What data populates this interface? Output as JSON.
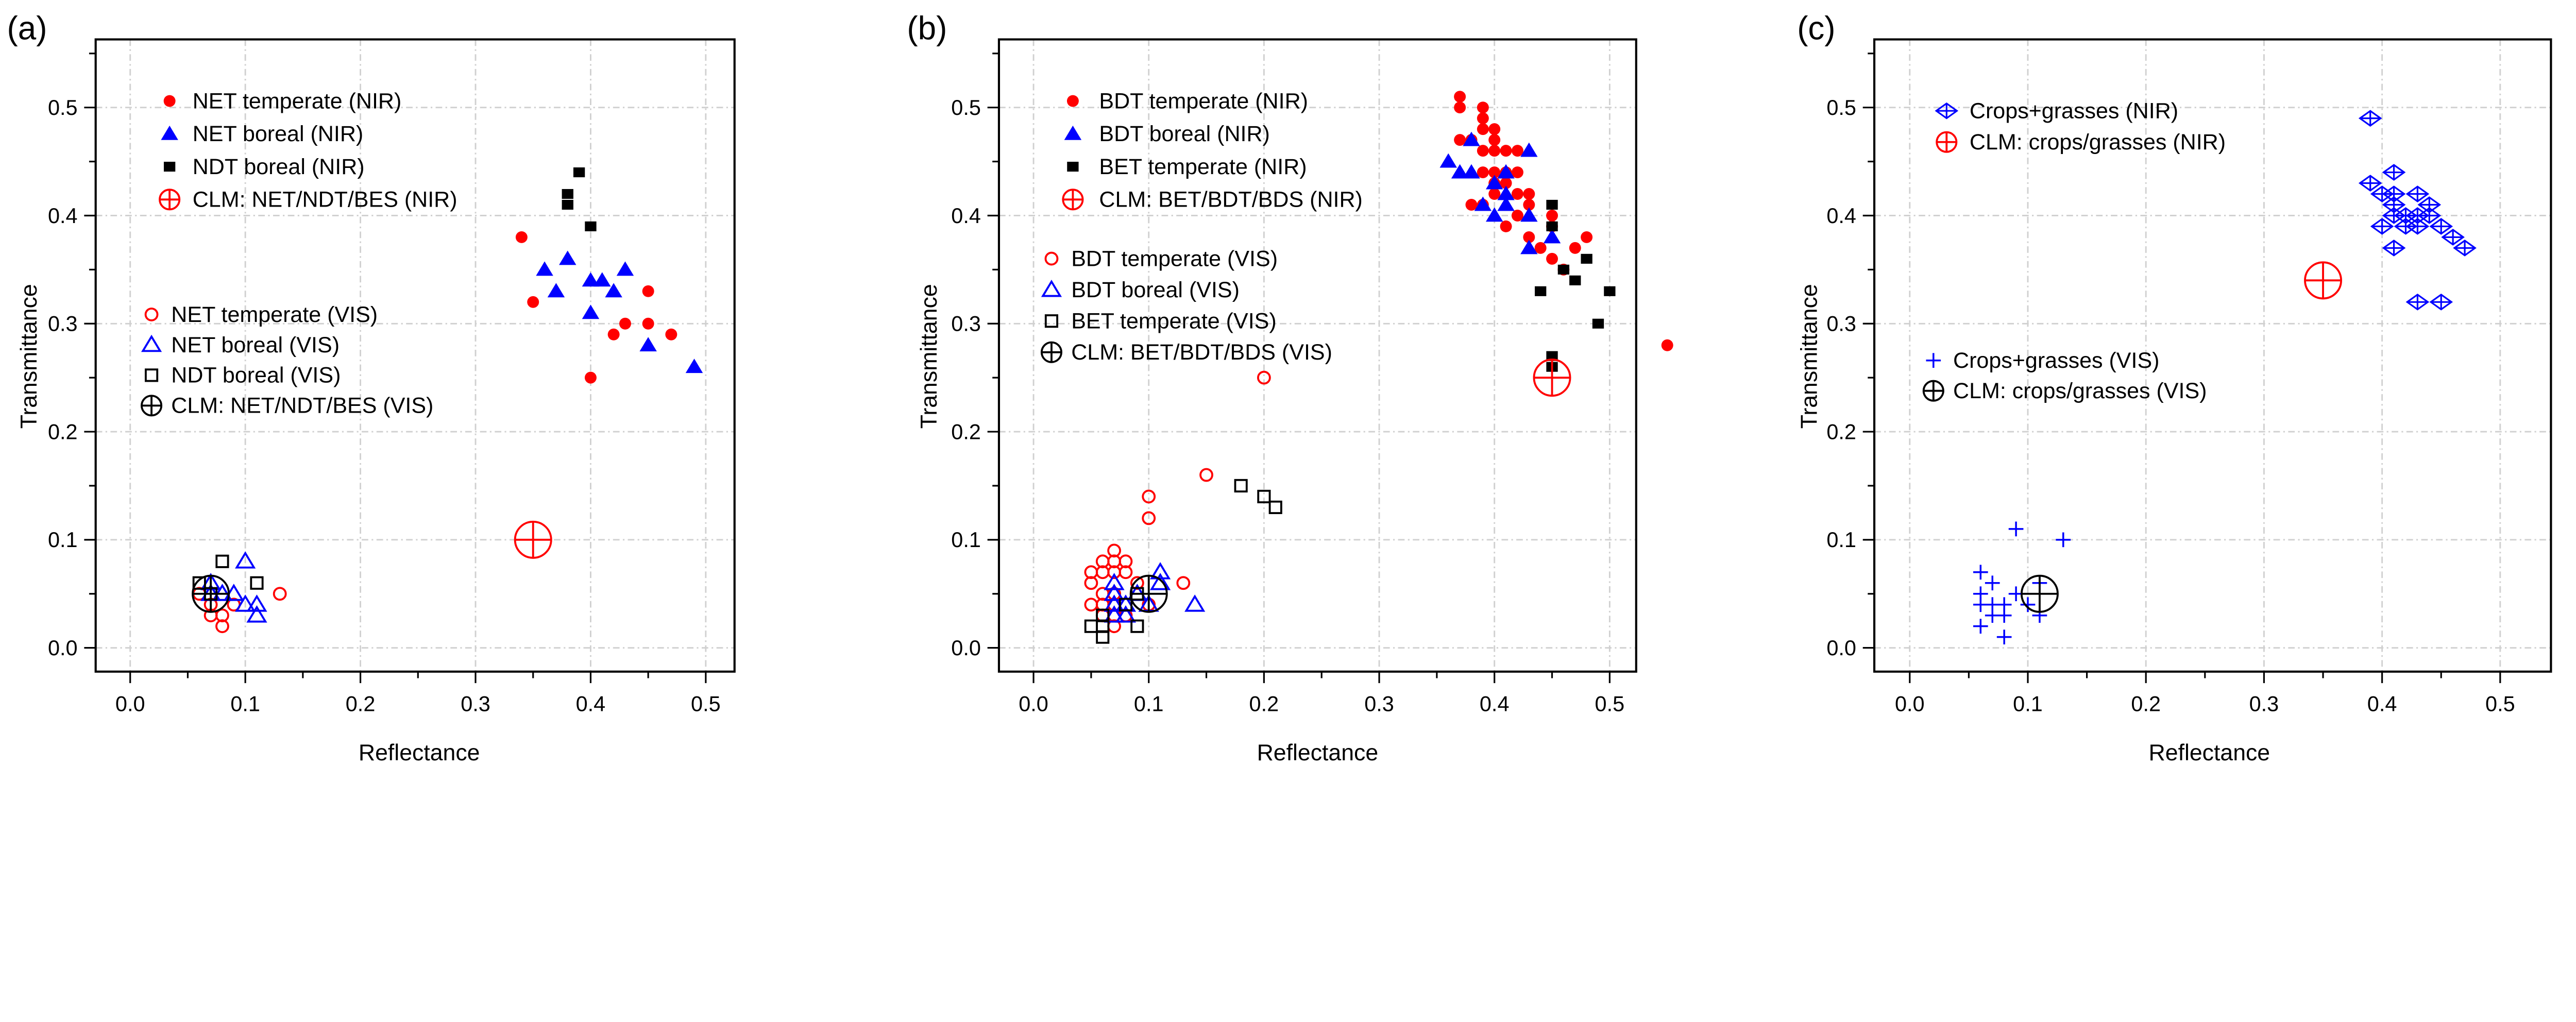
{
  "chart_data": [
    {
      "type": "scatter",
      "panel_label": "(a)",
      "xlabel": "Reflectance",
      "ylabel": "Transmittance",
      "xlim": [
        -0.03,
        0.525
      ],
      "ylim": [
        -0.022,
        0.563
      ],
      "xticks": [
        "0.0",
        "0.1",
        "0.2",
        "0.3",
        "0.4",
        "0.5"
      ],
      "yticks": [
        "0.0",
        "0.1",
        "0.2",
        "0.3",
        "0.4",
        "0.5"
      ],
      "grid": true,
      "series": [
        {
          "name": "NET temperate (NIR)",
          "marker": "filled-circle",
          "color": "#ff0000",
          "legend": "nir",
          "points": [
            [
              0.34,
              0.38
            ],
            [
              0.35,
              0.32
            ],
            [
              0.4,
              0.25
            ],
            [
              0.42,
              0.29
            ],
            [
              0.43,
              0.3
            ],
            [
              0.45,
              0.33
            ],
            [
              0.45,
              0.3
            ],
            [
              0.47,
              0.29
            ]
          ]
        },
        {
          "name": "NET boreal (NIR)",
          "marker": "filled-triangle",
          "color": "#0000ff",
          "legend": "nir",
          "points": [
            [
              0.36,
              0.35
            ],
            [
              0.38,
              0.36
            ],
            [
              0.37,
              0.33
            ],
            [
              0.4,
              0.34
            ],
            [
              0.41,
              0.34
            ],
            [
              0.42,
              0.33
            ],
            [
              0.43,
              0.35
            ],
            [
              0.4,
              0.31
            ],
            [
              0.45,
              0.28
            ],
            [
              0.49,
              0.26
            ]
          ]
        },
        {
          "name": "NDT boreal (NIR)",
          "marker": "filled-square",
          "color": "#000000",
          "legend": "nir",
          "points": [
            [
              0.39,
              0.44
            ],
            [
              0.38,
              0.42
            ],
            [
              0.38,
              0.41
            ],
            [
              0.4,
              0.39
            ]
          ]
        },
        {
          "name": "CLM: NET/NDT/BES (NIR)",
          "marker": "circle-plus",
          "color": "#ff0000",
          "legend": "nir",
          "points": [
            [
              0.35,
              0.1
            ]
          ]
        },
        {
          "name": "NET temperate (VIS)",
          "marker": "open-circle",
          "color": "#ff0000",
          "legend": "vis",
          "points": [
            [
              0.06,
              0.05
            ],
            [
              0.07,
              0.04
            ],
            [
              0.07,
              0.03
            ],
            [
              0.08,
              0.03
            ],
            [
              0.08,
              0.02
            ],
            [
              0.09,
              0.04
            ],
            [
              0.13,
              0.05
            ]
          ]
        },
        {
          "name": "NET boreal (VIS)",
          "marker": "open-triangle",
          "color": "#0000ff",
          "legend": "vis",
          "points": [
            [
              0.1,
              0.08
            ],
            [
              0.07,
              0.06
            ],
            [
              0.08,
              0.05
            ],
            [
              0.09,
              0.05
            ],
            [
              0.07,
              0.05
            ],
            [
              0.1,
              0.04
            ],
            [
              0.11,
              0.04
            ],
            [
              0.11,
              0.03
            ]
          ]
        },
        {
          "name": "NDT boreal (VIS)",
          "marker": "open-square",
          "color": "#000000",
          "legend": "vis",
          "points": [
            [
              0.08,
              0.08
            ],
            [
              0.06,
              0.06
            ],
            [
              0.07,
              0.05
            ],
            [
              0.11,
              0.06
            ]
          ]
        },
        {
          "name": "CLM: NET/NDT/BES (VIS)",
          "marker": "circle-plus",
          "color": "#000000",
          "legend": "vis",
          "points": [
            [
              0.07,
              0.05
            ]
          ]
        }
      ]
    },
    {
      "type": "scatter",
      "panel_label": "(b)",
      "xlabel": "Reflectance",
      "ylabel": "Transmittance",
      "xlim": [
        -0.03,
        0.523
      ],
      "ylim": [
        -0.022,
        0.563
      ],
      "xticks": [
        "0.0",
        "0.1",
        "0.2",
        "0.3",
        "0.4",
        "0.5"
      ],
      "yticks": [
        "0.0",
        "0.1",
        "0.2",
        "0.3",
        "0.4",
        "0.5"
      ],
      "grid": true,
      "series": [
        {
          "name": "BDT temperate (NIR)",
          "marker": "filled-circle",
          "color": "#ff0000",
          "legend": "nir",
          "points": [
            [
              0.37,
              0.51
            ],
            [
              0.37,
              0.5
            ],
            [
              0.39,
              0.5
            ],
            [
              0.39,
              0.49
            ],
            [
              0.39,
              0.48
            ],
            [
              0.4,
              0.48
            ],
            [
              0.37,
              0.47
            ],
            [
              0.38,
              0.47
            ],
            [
              0.4,
              0.47
            ],
            [
              0.39,
              0.46
            ],
            [
              0.4,
              0.46
            ],
            [
              0.41,
              0.46
            ],
            [
              0.42,
              0.46
            ],
            [
              0.39,
              0.44
            ],
            [
              0.4,
              0.44
            ],
            [
              0.41,
              0.44
            ],
            [
              0.42,
              0.44
            ],
            [
              0.4,
              0.43
            ],
            [
              0.41,
              0.43
            ],
            [
              0.4,
              0.42
            ],
            [
              0.42,
              0.42
            ],
            [
              0.43,
              0.42
            ],
            [
              0.38,
              0.41
            ],
            [
              0.39,
              0.41
            ],
            [
              0.43,
              0.41
            ],
            [
              0.42,
              0.4
            ],
            [
              0.45,
              0.4
            ],
            [
              0.41,
              0.39
            ],
            [
              0.45,
              0.39
            ],
            [
              0.43,
              0.38
            ],
            [
              0.48,
              0.38
            ],
            [
              0.44,
              0.37
            ],
            [
              0.47,
              0.37
            ],
            [
              0.45,
              0.36
            ],
            [
              0.46,
              0.35
            ],
            [
              0.55,
              0.28
            ]
          ]
        },
        {
          "name": "BDT boreal (NIR)",
          "marker": "filled-triangle",
          "color": "#0000ff",
          "legend": "nir",
          "points": [
            [
              0.36,
              0.45
            ],
            [
              0.38,
              0.47
            ],
            [
              0.43,
              0.46
            ],
            [
              0.37,
              0.44
            ],
            [
              0.38,
              0.44
            ],
            [
              0.41,
              0.44
            ],
            [
              0.4,
              0.43
            ],
            [
              0.41,
              0.42
            ],
            [
              0.39,
              0.41
            ],
            [
              0.41,
              0.41
            ],
            [
              0.4,
              0.4
            ],
            [
              0.43,
              0.4
            ],
            [
              0.45,
              0.38
            ],
            [
              0.43,
              0.37
            ]
          ]
        },
        {
          "name": "BET temperate (NIR)",
          "marker": "filled-square",
          "color": "#000000",
          "legend": "nir",
          "points": [
            [
              0.45,
              0.41
            ],
            [
              0.45,
              0.39
            ],
            [
              0.48,
              0.36
            ],
            [
              0.46,
              0.35
            ],
            [
              0.47,
              0.34
            ],
            [
              0.44,
              0.33
            ],
            [
              0.5,
              0.33
            ],
            [
              0.49,
              0.3
            ],
            [
              0.45,
              0.27
            ],
            [
              0.45,
              0.26
            ]
          ]
        },
        {
          "name": "CLM: BET/BDT/BDS (NIR)",
          "marker": "circle-plus",
          "color": "#ff0000",
          "legend": "nir",
          "points": [
            [
              0.45,
              0.25
            ]
          ]
        },
        {
          "name": "BDT temperate (VIS)",
          "marker": "open-circle",
          "color": "#ff0000",
          "legend": "vis",
          "points": [
            [
              0.2,
              0.25
            ],
            [
              0.15,
              0.16
            ],
            [
              0.1,
              0.14
            ],
            [
              0.1,
              0.12
            ],
            [
              0.13,
              0.06
            ],
            [
              0.07,
              0.09
            ],
            [
              0.06,
              0.08
            ],
            [
              0.07,
              0.08
            ],
            [
              0.08,
              0.08
            ],
            [
              0.05,
              0.07
            ],
            [
              0.06,
              0.07
            ],
            [
              0.07,
              0.07
            ],
            [
              0.08,
              0.07
            ],
            [
              0.05,
              0.06
            ],
            [
              0.09,
              0.06
            ],
            [
              0.06,
              0.05
            ],
            [
              0.07,
              0.05
            ],
            [
              0.05,
              0.04
            ],
            [
              0.06,
              0.04
            ],
            [
              0.07,
              0.04
            ],
            [
              0.1,
              0.04
            ],
            [
              0.06,
              0.03
            ],
            [
              0.07,
              0.03
            ],
            [
              0.08,
              0.03
            ],
            [
              0.07,
              0.02
            ]
          ]
        },
        {
          "name": "BDT boreal (VIS)",
          "marker": "open-triangle",
          "color": "#0000ff",
          "legend": "vis",
          "points": [
            [
              0.07,
              0.06
            ],
            [
              0.07,
              0.05
            ],
            [
              0.09,
              0.05
            ],
            [
              0.07,
              0.04
            ],
            [
              0.08,
              0.04
            ],
            [
              0.1,
              0.04
            ],
            [
              0.07,
              0.03
            ],
            [
              0.08,
              0.03
            ],
            [
              0.11,
              0.07
            ],
            [
              0.11,
              0.06
            ],
            [
              0.14,
              0.04
            ]
          ]
        },
        {
          "name": "BET temperate (VIS)",
          "marker": "open-square",
          "color": "#000000",
          "legend": "vis",
          "points": [
            [
              0.18,
              0.15
            ],
            [
              0.2,
              0.14
            ],
            [
              0.21,
              0.13
            ],
            [
              0.09,
              0.05
            ],
            [
              0.08,
              0.04
            ],
            [
              0.06,
              0.03
            ],
            [
              0.05,
              0.02
            ],
            [
              0.06,
              0.02
            ],
            [
              0.09,
              0.02
            ],
            [
              0.06,
              0.01
            ]
          ]
        },
        {
          "name": "CLM: BET/BDT/BDS (VIS)",
          "marker": "circle-plus",
          "color": "#000000",
          "legend": "vis",
          "points": [
            [
              0.1,
              0.05
            ]
          ]
        }
      ]
    },
    {
      "type": "scatter",
      "panel_label": "(c)",
      "xlabel": "Reflectance",
      "ylabel": "Transmittance",
      "xlim": [
        -0.03,
        0.543
      ],
      "ylim": [
        -0.022,
        0.563
      ],
      "xticks": [
        "0.0",
        "0.1",
        "0.2",
        "0.3",
        "0.4",
        "0.5"
      ],
      "yticks": [
        "0.0",
        "0.1",
        "0.2",
        "0.3",
        "0.4",
        "0.5"
      ],
      "grid": true,
      "series": [
        {
          "name": "Crops+grasses (NIR)",
          "marker": "diamond-plus",
          "color": "#0000ff",
          "legend": "nir",
          "points": [
            [
              0.39,
              0.49
            ],
            [
              0.41,
              0.44
            ],
            [
              0.39,
              0.43
            ],
            [
              0.4,
              0.42
            ],
            [
              0.41,
              0.42
            ],
            [
              0.43,
              0.42
            ],
            [
              0.41,
              0.41
            ],
            [
              0.44,
              0.41
            ],
            [
              0.41,
              0.4
            ],
            [
              0.42,
              0.4
            ],
            [
              0.43,
              0.4
            ],
            [
              0.44,
              0.4
            ],
            [
              0.4,
              0.39
            ],
            [
              0.42,
              0.39
            ],
            [
              0.43,
              0.39
            ],
            [
              0.45,
              0.39
            ],
            [
              0.46,
              0.38
            ],
            [
              0.47,
              0.37
            ],
            [
              0.41,
              0.37
            ],
            [
              0.43,
              0.32
            ],
            [
              0.45,
              0.32
            ]
          ]
        },
        {
          "name": "CLM:  crops/grasses (NIR)",
          "marker": "circle-plus",
          "color": "#ff0000",
          "legend": "nir",
          "points": [
            [
              0.35,
              0.34
            ]
          ]
        },
        {
          "name": "Crops+grasses (VIS)",
          "marker": "plus",
          "color": "#0000ff",
          "legend": "vis",
          "points": [
            [
              0.09,
              0.11
            ],
            [
              0.13,
              0.1
            ],
            [
              0.06,
              0.07
            ],
            [
              0.07,
              0.06
            ],
            [
              0.06,
              0.05
            ],
            [
              0.09,
              0.05
            ],
            [
              0.06,
              0.04
            ],
            [
              0.07,
              0.04
            ],
            [
              0.08,
              0.04
            ],
            [
              0.1,
              0.04
            ],
            [
              0.11,
              0.06
            ],
            [
              0.11,
              0.03
            ],
            [
              0.07,
              0.03
            ],
            [
              0.08,
              0.03
            ],
            [
              0.06,
              0.02
            ],
            [
              0.08,
              0.01
            ]
          ]
        },
        {
          "name": "CLM:  crops/grasses (VIS)",
          "marker": "circle-plus",
          "color": "#000000",
          "legend": "vis",
          "points": [
            [
              0.11,
              0.05
            ]
          ]
        }
      ]
    }
  ]
}
